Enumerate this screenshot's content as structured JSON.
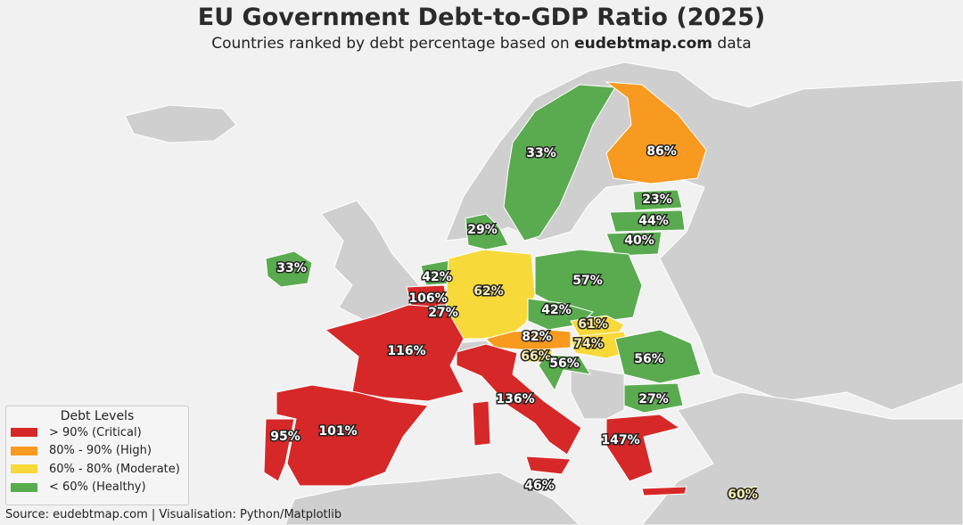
{
  "title": "EU Government Debt-to-GDP Ratio (2025)",
  "subtitle_prefix": "Countries ranked by debt percentage based on ",
  "subtitle_bold": "eudebtmap.com",
  "subtitle_suffix": " data",
  "colors": {
    "critical": "#d62828",
    "high": "#f79a1f",
    "moderate": "#f7d93a",
    "healthy": "#5aab4f",
    "non_eu": "#cfcfcf",
    "background": "#f1f1f1"
  },
  "legend": {
    "title": "Debt Levels",
    "items": [
      {
        "label": "> 90% (Critical)",
        "level": "critical"
      },
      {
        "label": "80% - 90% (High)",
        "level": "high"
      },
      {
        "label": "60% - 80% (Moderate)",
        "level": "moderate"
      },
      {
        "label": "< 60% (Healthy)",
        "level": "healthy"
      }
    ]
  },
  "regions": [
    {
      "value": 33,
      "label": "33%",
      "level": "healthy"
    },
    {
      "value": 86,
      "label": "86%",
      "level": "high"
    },
    {
      "value": 23,
      "label": "23%",
      "level": "healthy"
    },
    {
      "value": 44,
      "label": "44%",
      "level": "healthy"
    },
    {
      "value": 40,
      "label": "40%",
      "level": "healthy"
    },
    {
      "value": 29,
      "label": "29%",
      "level": "healthy"
    },
    {
      "value": 33,
      "label": "33%",
      "level": "healthy"
    },
    {
      "value": 42,
      "label": "42%",
      "level": "healthy"
    },
    {
      "value": 106,
      "label": "106%",
      "level": "critical"
    },
    {
      "value": 27,
      "label": "27%",
      "level": "healthy"
    },
    {
      "value": 62,
      "label": "62%",
      "level": "moderate"
    },
    {
      "value": 57,
      "label": "57%",
      "level": "healthy"
    },
    {
      "value": 42,
      "label": "42%",
      "level": "healthy"
    },
    {
      "value": 61,
      "label": "61%",
      "level": "moderate"
    },
    {
      "value": 82,
      "label": "82%",
      "level": "high"
    },
    {
      "value": 74,
      "label": "74%",
      "level": "moderate"
    },
    {
      "value": 66,
      "label": "66%",
      "level": "moderate"
    },
    {
      "value": 56,
      "label": "56%",
      "level": "healthy"
    },
    {
      "value": 56,
      "label": "56%",
      "level": "healthy"
    },
    {
      "value": 27,
      "label": "27%",
      "level": "healthy"
    },
    {
      "value": 116,
      "label": "116%",
      "level": "critical"
    },
    {
      "value": 136,
      "label": "136%",
      "level": "critical"
    },
    {
      "value": 147,
      "label": "147%",
      "level": "critical"
    },
    {
      "value": 101,
      "label": "101%",
      "level": "critical"
    },
    {
      "value": 95,
      "label": "95%",
      "level": "critical"
    },
    {
      "value": 46,
      "label": "46%",
      "level": "healthy"
    },
    {
      "value": 60,
      "label": "60%",
      "level": "moderate"
    }
  ],
  "source": "Source: eudebtmap.com | Visualisation: Python/Matplotlib"
}
